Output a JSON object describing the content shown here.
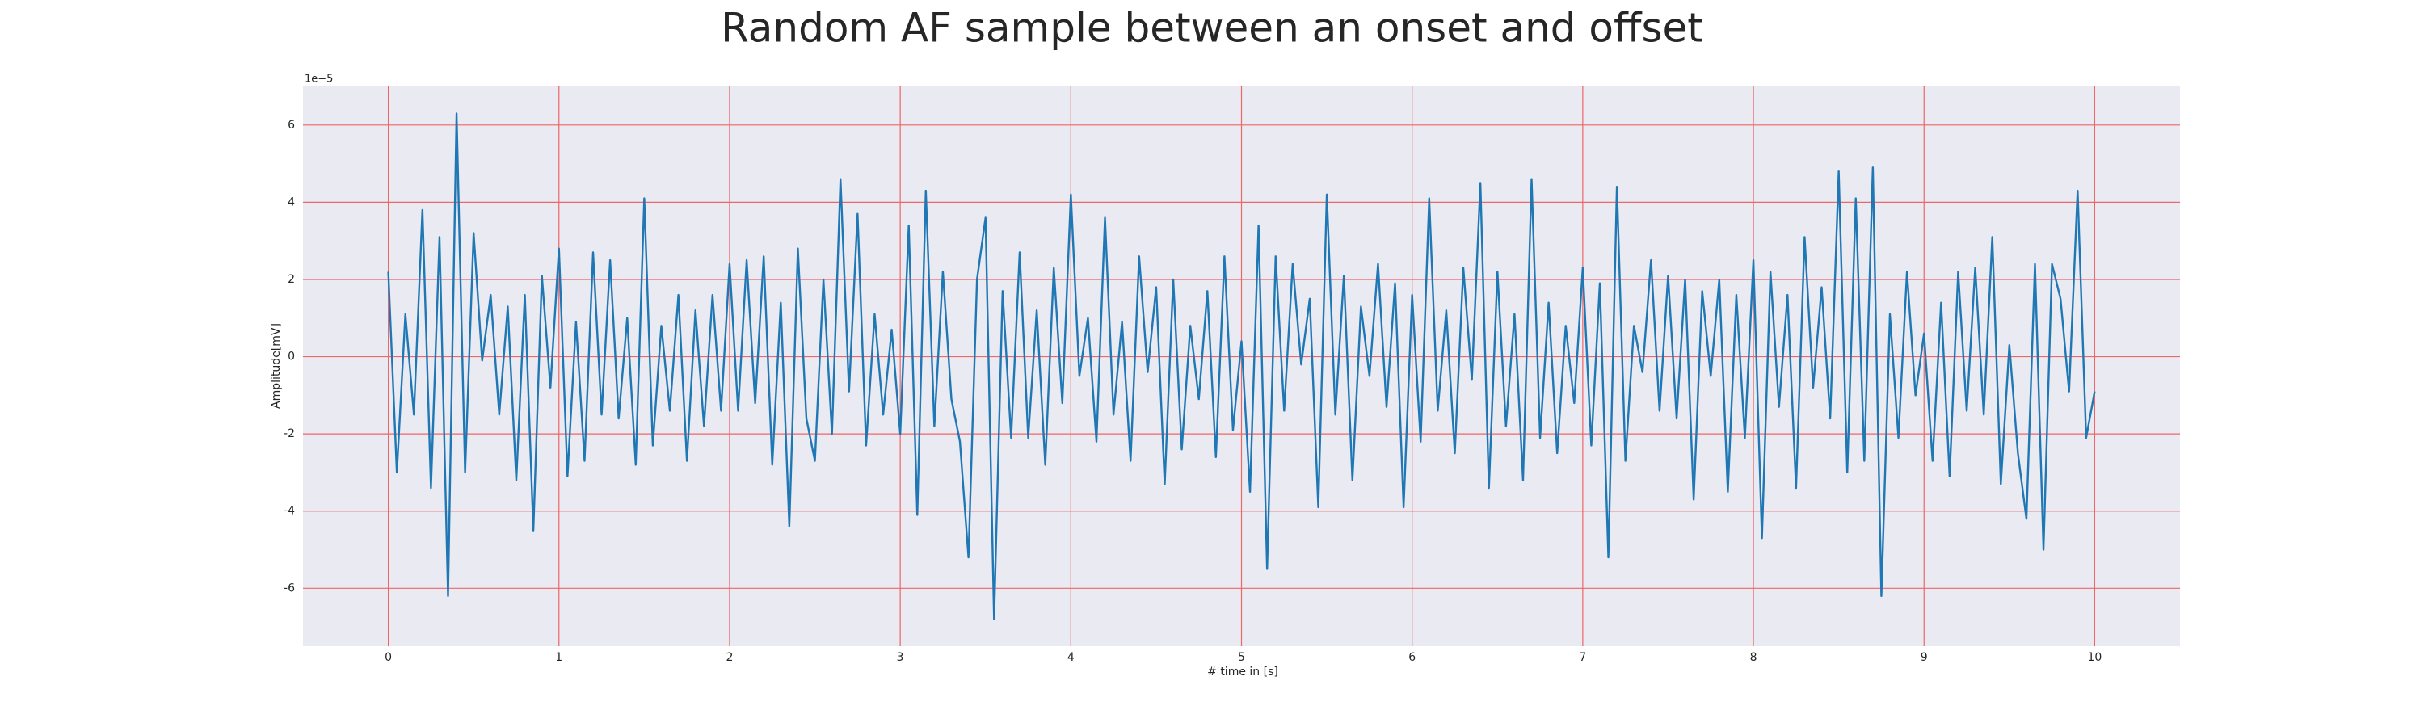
{
  "chart_data": {
    "type": "line",
    "title": "Random AF sample between an onset and offset",
    "xlabel": "# time in [s]",
    "ylabel": "Amplitude[mV]",
    "y_offset_label": "1e−5",
    "xlim": [
      -0.5,
      10.5
    ],
    "ylim": [
      -7.5,
      7
    ],
    "xticks": [
      0,
      1,
      2,
      3,
      4,
      5,
      6,
      7,
      8,
      9,
      10
    ],
    "yticks": [
      -6,
      -4,
      -2,
      0,
      2,
      4,
      6
    ],
    "grid": true,
    "grid_color": "#ee6666",
    "background": "#eaeaf2",
    "x": [
      0,
      0.05,
      0.1,
      0.15,
      0.2,
      0.25,
      0.3,
      0.35,
      0.4,
      0.45,
      0.5,
      0.55,
      0.6,
      0.65,
      0.7,
      0.75,
      0.8,
      0.85,
      0.9,
      0.95,
      1,
      1.05,
      1.1,
      1.15,
      1.2,
      1.25,
      1.3,
      1.35,
      1.4,
      1.45,
      1.5,
      1.55,
      1.6,
      1.65,
      1.7,
      1.75,
      1.8,
      1.85,
      1.9,
      1.95,
      2,
      2.05,
      2.1,
      2.15,
      2.2,
      2.25,
      2.3,
      2.35,
      2.4,
      2.45,
      2.5,
      2.55,
      2.6,
      2.65,
      2.7,
      2.75,
      2.8,
      2.85,
      2.9,
      2.95,
      3,
      3.05,
      3.1,
      3.15,
      3.2,
      3.25,
      3.3,
      3.35,
      3.4,
      3.45,
      3.5,
      3.55,
      3.6,
      3.65,
      3.7,
      3.75,
      3.8,
      3.85,
      3.9,
      3.95,
      4,
      4.05,
      4.1,
      4.15,
      4.2,
      4.25,
      4.3,
      4.35,
      4.4,
      4.45,
      4.5,
      4.55,
      4.6,
      4.65,
      4.7,
      4.75,
      4.8,
      4.85,
      4.9,
      4.95,
      5,
      5.05,
      5.1,
      5.15,
      5.2,
      5.25,
      5.3,
      5.35,
      5.4,
      5.45,
      5.5,
      5.55,
      5.6,
      5.65,
      5.7,
      5.75,
      5.8,
      5.85,
      5.9,
      5.95,
      6,
      6.05,
      6.1,
      6.15,
      6.2,
      6.25,
      6.3,
      6.35,
      6.4,
      6.45,
      6.5,
      6.55,
      6.6,
      6.65,
      6.7,
      6.75,
      6.8,
      6.85,
      6.9,
      6.95,
      7,
      7.05,
      7.1,
      7.15,
      7.2,
      7.25,
      7.3,
      7.35,
      7.4,
      7.45,
      7.5,
      7.55,
      7.6,
      7.65,
      7.7,
      7.75,
      7.8,
      7.85,
      7.9,
      7.95,
      8,
      8.05,
      8.1,
      8.15,
      8.2,
      8.25,
      8.3,
      8.35,
      8.4,
      8.45,
      8.5,
      8.55,
      8.6,
      8.65,
      8.7,
      8.75,
      8.8,
      8.85,
      8.9,
      8.95,
      9,
      9.05,
      9.1,
      9.15,
      9.2,
      9.25,
      9.3,
      9.35,
      9.4,
      9.45,
      9.5,
      9.55,
      9.6,
      9.65,
      9.7,
      9.75,
      9.8,
      9.85,
      9.9,
      9.95,
      10
    ],
    "series": [
      {
        "color": "#1f77b4",
        "values": [
          2.2,
          -3.0,
          1.1,
          -1.5,
          3.8,
          -3.4,
          3.1,
          -6.2,
          6.3,
          -3.0,
          3.2,
          -0.1,
          1.6,
          -1.5,
          1.3,
          -3.2,
          1.6,
          -4.5,
          2.1,
          -0.8,
          2.8,
          -3.1,
          0.9,
          -2.7,
          2.7,
          -1.5,
          2.5,
          -1.6,
          1.0,
          -2.8,
          4.1,
          -2.3,
          0.8,
          -1.4,
          1.6,
          -2.7,
          1.2,
          -1.8,
          1.6,
          -1.4,
          2.4,
          -1.4,
          2.5,
          -1.2,
          2.6,
          -2.8,
          1.4,
          -4.4,
          2.8,
          -1.6,
          -2.7,
          2.0,
          -2.0,
          4.6,
          -0.9,
          3.7,
          -2.3,
          1.1,
          -1.5,
          0.7,
          -2.0,
          3.4,
          -4.1,
          4.3,
          -1.8,
          2.2,
          -1.1,
          -2.2,
          -5.2,
          2.0,
          3.6,
          -6.8,
          1.7,
          -2.1,
          2.7,
          -2.1,
          1.2,
          -2.8,
          2.3,
          -1.2,
          4.2,
          -0.5,
          1.0,
          -2.2,
          3.6,
          -1.5,
          0.9,
          -2.7,
          2.6,
          -0.4,
          1.8,
          -3.3,
          2.0,
          -2.4,
          0.8,
          -1.1,
          1.7,
          -2.6,
          2.6,
          -1.9,
          0.4,
          -3.5,
          3.4,
          -5.5,
          2.6,
          -1.4,
          2.4,
          -0.2,
          1.5,
          -3.9,
          4.2,
          -1.5,
          2.1,
          -3.2,
          1.3,
          -0.5,
          2.4,
          -1.3,
          1.9,
          -3.9,
          1.6,
          -2.2,
          4.1,
          -1.4,
          1.2,
          -2.5,
          2.3,
          -0.6,
          4.5,
          -3.4,
          2.2,
          -1.8,
          1.1,
          -3.2,
          4.6,
          -2.1,
          1.4,
          -2.5,
          0.8,
          -1.2,
          2.3,
          -2.3,
          1.9,
          -5.2,
          4.4,
          -2.7,
          0.8,
          -0.4,
          2.5,
          -1.4,
          2.1,
          -1.6,
          2.0,
          -3.7,
          1.7,
          -0.5,
          2.0,
          -3.5,
          1.6,
          -2.1,
          2.5,
          -4.7,
          2.2,
          -1.3,
          1.6,
          -3.4,
          3.1,
          -0.8,
          1.8,
          -1.6,
          4.8,
          -3.0,
          4.1,
          -2.7,
          4.9,
          -6.2,
          1.1,
          -2.1,
          2.2,
          -1.0,
          0.6,
          -2.7,
          1.4,
          -3.1,
          2.2,
          -1.4,
          2.3,
          -1.5,
          3.1,
          -3.3,
          0.3,
          -2.5,
          -4.2,
          2.4,
          -5.0,
          2.4,
          1.5,
          -0.9,
          4.3,
          -2.1,
          -0.9
        ]
      }
    ]
  }
}
